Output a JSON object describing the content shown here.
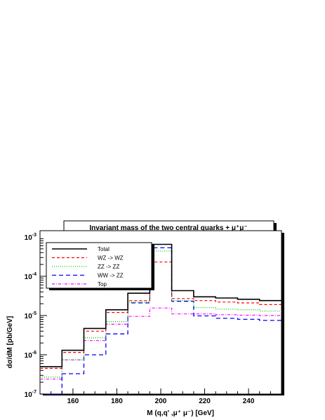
{
  "chart_data": {
    "type": "step",
    "title": "Invariant mass of the two central quarks + μ⁺μ⁻",
    "xlabel": "M (q,q' ,μ⁺ μ⁻)  [GeV]",
    "ylabel": "dσ/dM  [pb/GeV]",
    "xlim": [
      145,
      255
    ],
    "ylim": [
      1e-07,
      0.001
    ],
    "yscale": "log",
    "xticks": [
      160,
      180,
      200,
      220,
      240
    ],
    "ytick_labels": [
      {
        "base": "10",
        "exp": "-7",
        "value": 1e-07
      },
      {
        "base": "10",
        "exp": "-6",
        "value": 1e-06
      },
      {
        "base": "10",
        "exp": "-5",
        "value": 1e-05
      },
      {
        "base": "10",
        "exp": "-4",
        "value": 0.0001
      },
      {
        "base": "10",
        "exp": "-3",
        "value": 0.001
      }
    ],
    "bin_edges": [
      145,
      155,
      165,
      175,
      185,
      195,
      205,
      215,
      225,
      235,
      245,
      255
    ],
    "series": [
      {
        "name": "Total",
        "color": "#000000",
        "dash": "",
        "width": 1.6,
        "values": [
          5e-07,
          1.3e-06,
          4.7e-06,
          1.4e-05,
          3.7e-05,
          0.00065,
          4.3e-05,
          3e-05,
          2.8e-05,
          2.6e-05,
          2.4e-05
        ]
      },
      {
        "name": "WZ -> WZ",
        "color": "#ff0000",
        "dash": "4,3",
        "width": 1.2,
        "values": [
          4.5e-07,
          1.15e-06,
          4e-06,
          1.2e-05,
          2.4e-05,
          0.00023,
          2.7e-05,
          2.4e-05,
          2.2e-05,
          2.1e-05,
          1.9e-05
        ]
      },
      {
        "name": "ZZ -> ZZ",
        "color": "#00cc00",
        "dash": "1,2",
        "width": 1.3,
        "values": [
          2.7e-07,
          7.5e-07,
          2.7e-06,
          7e-06,
          2.2e-05,
          0.00044,
          2.4e-05,
          1.6e-05,
          1.45e-05,
          1.4e-05,
          1.3e-05
        ]
      },
      {
        "name": "WW -> ZZ",
        "color": "#0000ff",
        "dash": "6,4",
        "width": 1.3,
        "values": [
          1e-07,
          3.3e-07,
          1e-06,
          3.4e-06,
          2.1e-05,
          0.00053,
          2.3e-05,
          9.8e-06,
          8.5e-06,
          8e-06,
          7.5e-06
        ]
      },
      {
        "name": "Top",
        "color": "#ff00ff",
        "dash": "4,2,1,2",
        "width": 1.2,
        "values": [
          2.4e-07,
          7.4e-07,
          2.3e-06,
          6e-06,
          9.5e-06,
          1.55e-05,
          1.1e-05,
          1.1e-05,
          1.05e-05,
          1.02e-05,
          1e-05
        ]
      }
    ],
    "legend_position": "top-left",
    "grid": false
  }
}
